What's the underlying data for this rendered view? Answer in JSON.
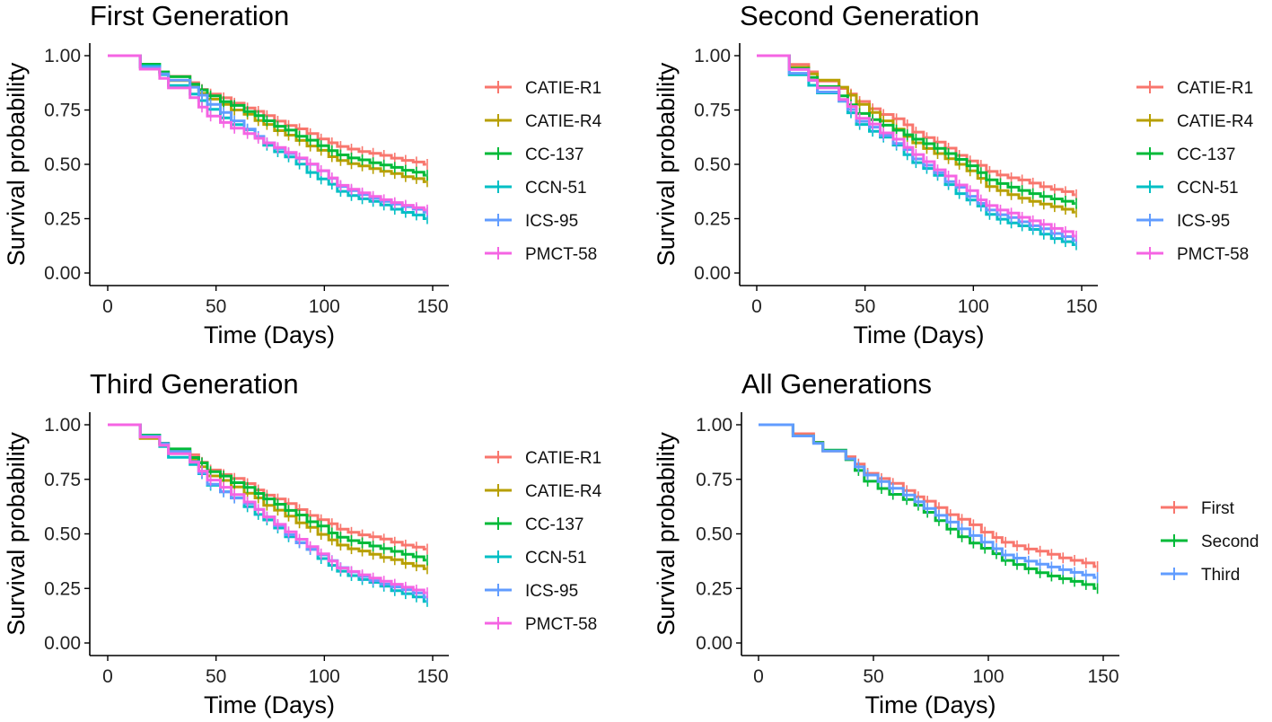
{
  "chart_data": [
    {
      "type": "line",
      "subtype": "kaplan-meier",
      "title": "First Generation",
      "xlabel": "Time (Days)",
      "ylabel": "Survival probability",
      "xlim": [
        0,
        150
      ],
      "ylim": [
        0,
        1
      ],
      "xticks": [
        0,
        50,
        100,
        150
      ],
      "yticks": [
        "0.00",
        "0.25",
        "0.50",
        "0.75",
        "1.00"
      ],
      "legend": "right",
      "series": [
        {
          "name": "CATIE-R1",
          "color": "#F8766D",
          "final": 0.5
        },
        {
          "name": "CATIE-R4",
          "color": "#B79F00",
          "final": 0.42
        },
        {
          "name": "CC-137",
          "color": "#00BA38",
          "final": 0.45
        },
        {
          "name": "CCN-51",
          "color": "#00BFC4",
          "final": 0.25
        },
        {
          "name": "ICS-95",
          "color": "#619CFF",
          "final": 0.28
        },
        {
          "name": "PMCT-58",
          "color": "#F564E3",
          "final": 0.29
        }
      ]
    },
    {
      "type": "line",
      "subtype": "kaplan-meier",
      "title": "Second Generation",
      "xlabel": "Time (Days)",
      "ylabel": "Survival probability",
      "xlim": [
        0,
        150
      ],
      "ylim": [
        0,
        1
      ],
      "xticks": [
        0,
        50,
        100,
        150
      ],
      "yticks": [
        "0.00",
        "0.25",
        "0.50",
        "0.75",
        "1.00"
      ],
      "legend": "right",
      "series": [
        {
          "name": "CATIE-R1",
          "color": "#F8766D",
          "final": 0.36
        },
        {
          "name": "CATIE-R4",
          "color": "#B79F00",
          "final": 0.28
        },
        {
          "name": "CC-137",
          "color": "#00BA38",
          "final": 0.32
        },
        {
          "name": "CCN-51",
          "color": "#00BFC4",
          "final": 0.13
        },
        {
          "name": "ICS-95",
          "color": "#619CFF",
          "final": 0.15
        },
        {
          "name": "PMCT-58",
          "color": "#F564E3",
          "final": 0.17
        }
      ]
    },
    {
      "type": "line",
      "subtype": "kaplan-meier",
      "title": "Third Generation",
      "xlabel": "Time (Days)",
      "ylabel": "Survival probability",
      "xlim": [
        0,
        150
      ],
      "ylim": [
        0,
        1
      ],
      "xticks": [
        0,
        50,
        100,
        150
      ],
      "yticks": [
        "0.00",
        "0.25",
        "0.50",
        "0.75",
        "1.00"
      ],
      "legend": "right",
      "series": [
        {
          "name": "CATIE-R1",
          "color": "#F8766D",
          "final": 0.43
        },
        {
          "name": "CATIE-R4",
          "color": "#B79F00",
          "final": 0.34
        },
        {
          "name": "CC-137",
          "color": "#00BA38",
          "final": 0.38
        },
        {
          "name": "CCN-51",
          "color": "#00BFC4",
          "final": 0.19
        },
        {
          "name": "ICS-95",
          "color": "#619CFF",
          "final": 0.21
        },
        {
          "name": "PMCT-58",
          "color": "#F564E3",
          "final": 0.23
        }
      ]
    },
    {
      "type": "line",
      "subtype": "kaplan-meier",
      "title": "All Generations",
      "xlabel": "Time (Days)",
      "ylabel": "Survival probability",
      "xlim": [
        0,
        150
      ],
      "ylim": [
        0,
        1
      ],
      "xticks": [
        0,
        50,
        100,
        150
      ],
      "yticks": [
        "0.00",
        "0.25",
        "0.50",
        "0.75",
        "1.00"
      ],
      "legend": "right",
      "series": [
        {
          "name": "First",
          "color": "#F8766D",
          "final": 0.35
        },
        {
          "name": "Second",
          "color": "#00BA38",
          "final": 0.25
        },
        {
          "name": "Third",
          "color": "#619CFF",
          "final": 0.3
        }
      ]
    }
  ]
}
